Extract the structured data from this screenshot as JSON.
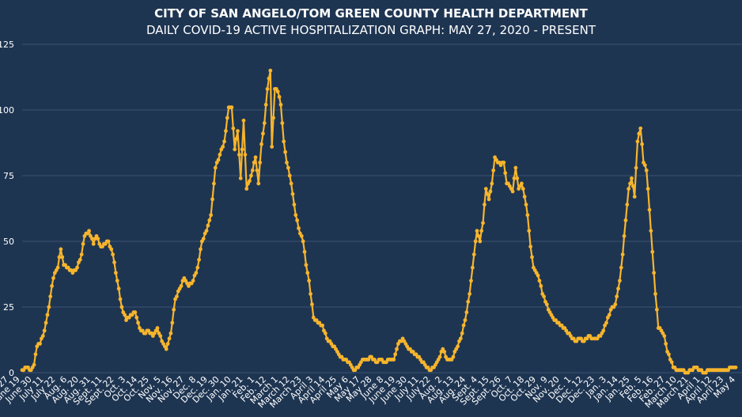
{
  "colors": {
    "background": "#1e3552",
    "grid": "#3a5272",
    "line": "#f7b52c",
    "text": "#ffffff"
  },
  "chart_data": {
    "type": "line",
    "title": "CITY OF SAN ANGELO/TOM GREEN COUNTY HEALTH DEPARTMENT",
    "subtitle": "DAILY COVID-19 ACTIVE HOSPITALIZATION GRAPH: MAY 27, 2020 - PRESENT",
    "xlabel": "",
    "ylabel": "",
    "ylim": [
      0,
      125
    ],
    "yticks": [
      0,
      25,
      50,
      75,
      100,
      125
    ],
    "grid": true,
    "legend": "none",
    "xticks": [
      "May 27",
      "June 19",
      "June 30",
      "July 11",
      "July 22",
      "Aug. 6",
      "Aug. 20",
      "Aug. 31",
      "Sept. 11",
      "Sept. 22",
      "Oct. 3",
      "Oct. 14",
      "Oct. 25",
      "Nov. 5",
      "Nov. 16",
      "Nov. 27",
      "Dec. 8",
      "Dec. 19",
      "Dec. 30",
      "Jan. 10",
      "Jan. 21",
      "Feb. 1",
      "Feb. 12",
      "March 1",
      "March 12",
      "March 23",
      "April 3",
      "April 14",
      "April 25",
      "May 6",
      "May 17",
      "May 28",
      "June 8",
      "June 19",
      "June 30",
      "July 11",
      "July 22",
      "Aug. 2",
      "Aug. 13",
      "Aug. 24",
      "Sept. 4",
      "Sept. 15",
      "Sept. 26",
      "Oct. 7",
      "Oct. 18",
      "Oct. 29",
      "Nov. 9",
      "Nov. 20",
      "Dec. 1",
      "Dec. 12",
      "Dec. 23",
      "Jan. 3",
      "Jan. 14",
      "Jan. 25",
      "Feb. 5",
      "Feb. 16",
      "Feb. 27",
      "March 10",
      "March 21",
      "April 1",
      "April 12",
      "April 23",
      "May 4"
    ],
    "keypoints": [
      [
        0,
        1
      ],
      [
        3,
        2
      ],
      [
        6,
        1
      ],
      [
        8,
        3
      ],
      [
        10,
        10
      ],
      [
        12,
        11
      ],
      [
        15,
        16
      ],
      [
        18,
        25
      ],
      [
        20,
        33
      ],
      [
        22,
        38
      ],
      [
        24,
        40
      ],
      [
        26,
        47
      ],
      [
        28,
        41
      ],
      [
        31,
        40
      ],
      [
        34,
        38
      ],
      [
        37,
        40
      ],
      [
        40,
        45
      ],
      [
        42,
        52
      ],
      [
        45,
        54
      ],
      [
        48,
        49
      ],
      [
        50,
        52
      ],
      [
        53,
        48
      ],
      [
        56,
        49
      ],
      [
        58,
        50
      ],
      [
        61,
        45
      ],
      [
        64,
        35
      ],
      [
        67,
        25
      ],
      [
        70,
        20
      ],
      [
        73,
        22
      ],
      [
        76,
        23
      ],
      [
        79,
        17
      ],
      [
        82,
        15
      ],
      [
        85,
        16
      ],
      [
        88,
        14
      ],
      [
        91,
        17
      ],
      [
        94,
        12
      ],
      [
        97,
        9
      ],
      [
        100,
        15
      ],
      [
        103,
        28
      ],
      [
        106,
        32
      ],
      [
        109,
        36
      ],
      [
        112,
        33
      ],
      [
        115,
        35
      ],
      [
        118,
        40
      ],
      [
        121,
        50
      ],
      [
        124,
        54
      ],
      [
        127,
        60
      ],
      [
        130,
        78
      ],
      [
        133,
        83
      ],
      [
        136,
        88
      ],
      [
        139,
        101
      ],
      [
        141,
        101
      ],
      [
        143,
        85
      ],
      [
        145,
        92
      ],
      [
        147,
        74
      ],
      [
        149,
        96
      ],
      [
        151,
        70
      ],
      [
        154,
        75
      ],
      [
        157,
        82
      ],
      [
        159,
        72
      ],
      [
        161,
        87
      ],
      [
        163,
        95
      ],
      [
        165,
        108
      ],
      [
        167,
        115
      ],
      [
        168,
        86
      ],
      [
        170,
        108
      ],
      [
        172,
        107
      ],
      [
        174,
        102
      ],
      [
        176,
        88
      ],
      [
        178,
        80
      ],
      [
        180,
        75
      ],
      [
        182,
        68
      ],
      [
        184,
        60
      ],
      [
        187,
        53
      ],
      [
        189,
        50
      ],
      [
        191,
        41
      ],
      [
        193,
        35
      ],
      [
        196,
        21
      ],
      [
        199,
        19
      ],
      [
        202,
        18
      ],
      [
        205,
        13
      ],
      [
        208,
        11
      ],
      [
        211,
        9
      ],
      [
        214,
        6
      ],
      [
        217,
        5
      ],
      [
        220,
        4
      ],
      [
        223,
        1
      ],
      [
        226,
        2
      ],
      [
        229,
        5
      ],
      [
        232,
        5
      ],
      [
        235,
        6
      ],
      [
        238,
        4
      ],
      [
        241,
        5
      ],
      [
        244,
        4
      ],
      [
        247,
        5
      ],
      [
        250,
        5
      ],
      [
        253,
        11
      ],
      [
        256,
        13
      ],
      [
        259,
        10
      ],
      [
        262,
        8
      ],
      [
        265,
        7
      ],
      [
        268,
        5
      ],
      [
        271,
        3
      ],
      [
        274,
        1
      ],
      [
        277,
        2
      ],
      [
        280,
        5
      ],
      [
        283,
        9
      ],
      [
        286,
        5
      ],
      [
        289,
        5
      ],
      [
        292,
        9
      ],
      [
        295,
        13
      ],
      [
        298,
        20
      ],
      [
        301,
        30
      ],
      [
        304,
        45
      ],
      [
        306,
        54
      ],
      [
        308,
        50
      ],
      [
        310,
        57
      ],
      [
        312,
        70
      ],
      [
        314,
        66
      ],
      [
        316,
        72
      ],
      [
        318,
        82
      ],
      [
        320,
        80
      ],
      [
        322,
        79
      ],
      [
        324,
        80
      ],
      [
        326,
        72
      ],
      [
        328,
        71
      ],
      [
        330,
        69
      ],
      [
        332,
        78
      ],
      [
        334,
        70
      ],
      [
        336,
        72
      ],
      [
        338,
        67
      ],
      [
        340,
        60
      ],
      [
        342,
        48
      ],
      [
        344,
        40
      ],
      [
        346,
        38
      ],
      [
        348,
        35
      ],
      [
        350,
        30
      ],
      [
        352,
        27
      ],
      [
        354,
        24
      ],
      [
        357,
        21
      ],
      [
        360,
        19
      ],
      [
        363,
        18
      ],
      [
        366,
        16
      ],
      [
        369,
        14
      ],
      [
        372,
        12
      ],
      [
        375,
        13
      ],
      [
        378,
        12
      ],
      [
        381,
        14
      ],
      [
        384,
        13
      ],
      [
        387,
        13
      ],
      [
        390,
        15
      ],
      [
        393,
        19
      ],
      [
        396,
        24
      ],
      [
        399,
        26
      ],
      [
        402,
        35
      ],
      [
        404,
        45
      ],
      [
        406,
        58
      ],
      [
        408,
        70
      ],
      [
        410,
        74
      ],
      [
        412,
        67
      ],
      [
        414,
        88
      ],
      [
        416,
        93
      ],
      [
        418,
        80
      ],
      [
        420,
        77
      ],
      [
        422,
        62
      ],
      [
        424,
        46
      ],
      [
        426,
        30
      ],
      [
        428,
        17
      ],
      [
        430,
        16
      ],
      [
        432,
        14
      ],
      [
        434,
        8
      ],
      [
        436,
        5
      ],
      [
        438,
        2
      ],
      [
        441,
        1
      ],
      [
        444,
        1
      ],
      [
        447,
        0
      ],
      [
        450,
        1
      ],
      [
        453,
        2
      ],
      [
        456,
        1
      ],
      [
        459,
        0
      ],
      [
        462,
        1
      ],
      [
        465,
        1
      ],
      [
        468,
        1
      ],
      [
        471,
        1
      ],
      [
        474,
        1
      ],
      [
        477,
        2
      ],
      [
        480,
        2
      ]
    ]
  }
}
